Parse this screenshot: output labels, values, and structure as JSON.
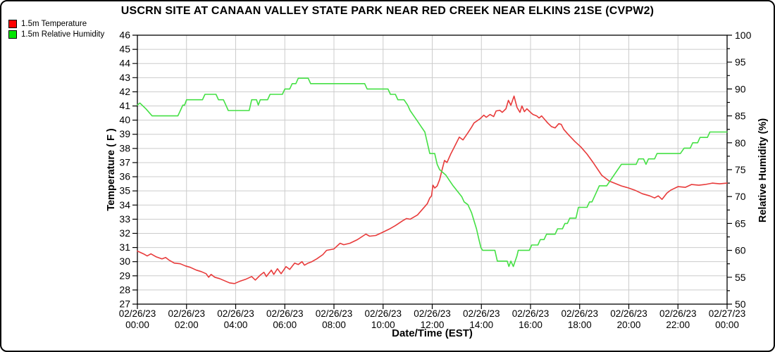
{
  "chart_data": {
    "type": "line",
    "title": "USCRN SITE AT CANAAN VALLEY STATE PARK NEAR RED CREEK NEAR ELKINS 21SE (CVPW2)",
    "grid": true,
    "grid_color": "#cccccc",
    "legend_position": "top-left",
    "x_axis": {
      "label": "Date/Time (EST)",
      "range_hours": [
        0,
        24
      ],
      "tick_interval_hours": 2,
      "ticks": [
        {
          "date": "02/26/23",
          "time": "00:00"
        },
        {
          "date": "02/26/23",
          "time": "02:00"
        },
        {
          "date": "02/26/23",
          "time": "04:00"
        },
        {
          "date": "02/26/23",
          "time": "06:00"
        },
        {
          "date": "02/26/23",
          "time": "08:00"
        },
        {
          "date": "02/26/23",
          "time": "10:00"
        },
        {
          "date": "02/26/23",
          "time": "12:00"
        },
        {
          "date": "02/26/23",
          "time": "14:00"
        },
        {
          "date": "02/26/23",
          "time": "16:00"
        },
        {
          "date": "02/26/23",
          "time": "18:00"
        },
        {
          "date": "02/26/23",
          "time": "20:00"
        },
        {
          "date": "02/26/23",
          "time": "22:00"
        },
        {
          "date": "02/27/23",
          "time": "00:00"
        }
      ]
    },
    "y_left": {
      "label": "Temperature ( F )",
      "min": 27,
      "max": 46,
      "tick_step": 1
    },
    "y_right": {
      "label": "Relative Humidity (%)",
      "min": 50,
      "max": 100,
      "tick_step": 5,
      "minor_tick_step": 2.5
    },
    "series": [
      {
        "name": "1.5m Temperature",
        "axis": "left",
        "color": "#e83b3b",
        "points": [
          [
            0,
            30.75
          ],
          [
            0.25,
            30.55
          ],
          [
            0.4,
            30.4
          ],
          [
            0.55,
            30.55
          ],
          [
            0.75,
            30.35
          ],
          [
            1.0,
            30.2
          ],
          [
            1.15,
            30.3
          ],
          [
            1.3,
            30.1
          ],
          [
            1.5,
            29.9
          ],
          [
            1.75,
            29.85
          ],
          [
            1.95,
            29.7
          ],
          [
            2.15,
            29.6
          ],
          [
            2.4,
            29.4
          ],
          [
            2.6,
            29.3
          ],
          [
            2.8,
            29.15
          ],
          [
            2.9,
            28.9
          ],
          [
            3.0,
            29.1
          ],
          [
            3.15,
            28.9
          ],
          [
            3.35,
            28.8
          ],
          [
            3.55,
            28.65
          ],
          [
            3.75,
            28.5
          ],
          [
            3.95,
            28.45
          ],
          [
            4.15,
            28.6
          ],
          [
            4.4,
            28.75
          ],
          [
            4.65,
            28.95
          ],
          [
            4.8,
            28.7
          ],
          [
            5.0,
            29.05
          ],
          [
            5.15,
            29.25
          ],
          [
            5.25,
            28.95
          ],
          [
            5.45,
            29.4
          ],
          [
            5.55,
            29.1
          ],
          [
            5.7,
            29.5
          ],
          [
            5.85,
            29.15
          ],
          [
            6.05,
            29.65
          ],
          [
            6.2,
            29.45
          ],
          [
            6.4,
            29.9
          ],
          [
            6.55,
            29.8
          ],
          [
            6.7,
            30.0
          ],
          [
            6.8,
            29.75
          ],
          [
            6.95,
            29.9
          ],
          [
            7.1,
            30.0
          ],
          [
            7.3,
            30.2
          ],
          [
            7.55,
            30.5
          ],
          [
            7.7,
            30.8
          ],
          [
            8.0,
            30.9
          ],
          [
            8.25,
            31.3
          ],
          [
            8.4,
            31.2
          ],
          [
            8.65,
            31.3
          ],
          [
            8.95,
            31.55
          ],
          [
            9.3,
            31.95
          ],
          [
            9.45,
            31.8
          ],
          [
            9.7,
            31.85
          ],
          [
            9.95,
            32.05
          ],
          [
            10.25,
            32.3
          ],
          [
            10.5,
            32.55
          ],
          [
            10.8,
            32.9
          ],
          [
            10.95,
            33.05
          ],
          [
            11.1,
            33.0
          ],
          [
            11.4,
            33.3
          ],
          [
            11.65,
            33.8
          ],
          [
            11.8,
            34.1
          ],
          [
            11.9,
            34.5
          ],
          [
            11.97,
            34.65
          ],
          [
            12.03,
            35.4
          ],
          [
            12.1,
            35.2
          ],
          [
            12.2,
            35.35
          ],
          [
            12.3,
            35.8
          ],
          [
            12.4,
            36.5
          ],
          [
            12.5,
            37.15
          ],
          [
            12.6,
            37.0
          ],
          [
            12.75,
            37.6
          ],
          [
            12.9,
            38.1
          ],
          [
            13.1,
            38.8
          ],
          [
            13.25,
            38.6
          ],
          [
            13.45,
            39.1
          ],
          [
            13.6,
            39.5
          ],
          [
            13.7,
            39.8
          ],
          [
            13.95,
            40.1
          ],
          [
            14.1,
            40.35
          ],
          [
            14.2,
            40.2
          ],
          [
            14.35,
            40.4
          ],
          [
            14.5,
            40.25
          ],
          [
            14.6,
            40.65
          ],
          [
            14.75,
            40.7
          ],
          [
            14.85,
            40.55
          ],
          [
            15.0,
            40.8
          ],
          [
            15.1,
            41.4
          ],
          [
            15.2,
            41.05
          ],
          [
            15.33,
            41.7
          ],
          [
            15.45,
            40.9
          ],
          [
            15.57,
            40.55
          ],
          [
            15.65,
            41.0
          ],
          [
            15.75,
            40.6
          ],
          [
            15.85,
            40.8
          ],
          [
            16.0,
            40.55
          ],
          [
            16.1,
            40.4
          ],
          [
            16.25,
            40.3
          ],
          [
            16.35,
            40.15
          ],
          [
            16.45,
            40.3
          ],
          [
            16.55,
            40.1
          ],
          [
            16.7,
            39.8
          ],
          [
            16.85,
            39.55
          ],
          [
            17.0,
            39.45
          ],
          [
            17.15,
            39.75
          ],
          [
            17.25,
            39.7
          ],
          [
            17.35,
            39.35
          ],
          [
            17.55,
            38.95
          ],
          [
            17.8,
            38.5
          ],
          [
            18.05,
            38.1
          ],
          [
            18.3,
            37.6
          ],
          [
            18.55,
            37.0
          ],
          [
            18.9,
            36.1
          ],
          [
            19.2,
            35.7
          ],
          [
            19.7,
            35.35
          ],
          [
            20.0,
            35.2
          ],
          [
            20.25,
            35.05
          ],
          [
            20.55,
            34.8
          ],
          [
            20.85,
            34.65
          ],
          [
            21.05,
            34.5
          ],
          [
            21.2,
            34.65
          ],
          [
            21.35,
            34.4
          ],
          [
            21.55,
            34.85
          ],
          [
            21.7,
            35.05
          ],
          [
            22.0,
            35.3
          ],
          [
            22.3,
            35.25
          ],
          [
            22.55,
            35.45
          ],
          [
            22.85,
            35.4
          ],
          [
            23.1,
            35.45
          ],
          [
            23.4,
            35.55
          ],
          [
            23.7,
            35.5
          ],
          [
            24,
            35.55
          ]
        ]
      },
      {
        "name": "1.5m Relative Humidity",
        "axis": "right",
        "color": "#44e044",
        "points": [
          [
            0,
            87
          ],
          [
            0.1,
            87.4
          ],
          [
            0.35,
            86.3
          ],
          [
            0.6,
            85
          ],
          [
            1.65,
            85
          ],
          [
            1.75,
            86
          ],
          [
            1.85,
            87
          ],
          [
            1.92,
            87
          ],
          [
            2.0,
            88
          ],
          [
            2.65,
            88
          ],
          [
            2.75,
            89
          ],
          [
            3.2,
            89
          ],
          [
            3.3,
            88
          ],
          [
            3.5,
            88
          ],
          [
            3.6,
            87
          ],
          [
            3.7,
            86
          ],
          [
            4.55,
            86
          ],
          [
            4.65,
            88
          ],
          [
            4.85,
            88
          ],
          [
            4.92,
            87
          ],
          [
            5.0,
            88
          ],
          [
            5.3,
            88
          ],
          [
            5.4,
            89
          ],
          [
            5.9,
            89
          ],
          [
            6.0,
            90
          ],
          [
            6.2,
            90
          ],
          [
            6.3,
            91
          ],
          [
            6.45,
            91
          ],
          [
            6.55,
            92
          ],
          [
            6.95,
            92
          ],
          [
            7.05,
            91
          ],
          [
            9.25,
            91
          ],
          [
            9.35,
            90
          ],
          [
            10.2,
            90
          ],
          [
            10.3,
            89
          ],
          [
            10.5,
            89
          ],
          [
            10.6,
            88
          ],
          [
            10.85,
            88
          ],
          [
            11.0,
            87
          ],
          [
            11.1,
            86
          ],
          [
            11.25,
            85
          ],
          [
            11.4,
            84
          ],
          [
            11.55,
            83
          ],
          [
            11.7,
            82
          ],
          [
            11.8,
            80
          ],
          [
            11.9,
            78
          ],
          [
            12.1,
            78
          ],
          [
            12.2,
            76
          ],
          [
            12.3,
            75
          ],
          [
            12.55,
            74
          ],
          [
            12.7,
            73
          ],
          [
            12.85,
            72
          ],
          [
            13.2,
            70
          ],
          [
            13.3,
            69
          ],
          [
            13.45,
            68.5
          ],
          [
            13.6,
            67
          ],
          [
            13.7,
            65.5
          ],
          [
            13.8,
            64
          ],
          [
            13.9,
            62
          ],
          [
            13.98,
            60.5
          ],
          [
            14.05,
            60
          ],
          [
            14.55,
            60
          ],
          [
            14.65,
            58
          ],
          [
            15.05,
            58
          ],
          [
            15.12,
            57
          ],
          [
            15.2,
            58
          ],
          [
            15.3,
            57
          ],
          [
            15.45,
            59
          ],
          [
            15.5,
            60
          ],
          [
            15.95,
            60
          ],
          [
            16.05,
            61
          ],
          [
            16.3,
            61
          ],
          [
            16.4,
            62
          ],
          [
            16.55,
            62
          ],
          [
            16.65,
            63
          ],
          [
            17.0,
            63
          ],
          [
            17.1,
            64
          ],
          [
            17.3,
            64
          ],
          [
            17.4,
            65
          ],
          [
            17.5,
            65
          ],
          [
            17.6,
            66
          ],
          [
            17.85,
            66
          ],
          [
            17.95,
            68
          ],
          [
            18.3,
            68
          ],
          [
            18.4,
            69
          ],
          [
            18.5,
            69
          ],
          [
            18.6,
            70
          ],
          [
            18.7,
            71
          ],
          [
            18.8,
            72
          ],
          [
            19.1,
            72
          ],
          [
            19.25,
            73
          ],
          [
            19.4,
            74
          ],
          [
            19.55,
            75
          ],
          [
            19.7,
            76
          ],
          [
            20.3,
            76
          ],
          [
            20.4,
            77
          ],
          [
            20.6,
            77
          ],
          [
            20.7,
            76
          ],
          [
            20.8,
            77
          ],
          [
            21.05,
            77
          ],
          [
            21.15,
            78
          ],
          [
            22.1,
            78
          ],
          [
            22.25,
            79
          ],
          [
            22.5,
            79
          ],
          [
            22.6,
            80
          ],
          [
            22.8,
            80
          ],
          [
            22.9,
            81
          ],
          [
            23.2,
            81
          ],
          [
            23.3,
            82
          ],
          [
            24,
            82
          ]
        ]
      }
    ]
  },
  "legend": [
    {
      "label": "1.5m Temperature",
      "color": "#ff0000"
    },
    {
      "label": "1.5m Relative Humidity",
      "color": "#00e600"
    }
  ]
}
